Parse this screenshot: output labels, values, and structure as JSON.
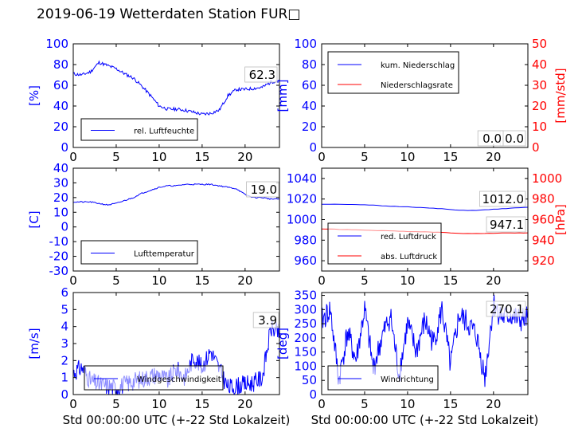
{
  "title": "2019-06-19 Wetterdaten Station FUR□",
  "colors": {
    "left_axis": "#0000ff",
    "right_axis": "#ff0000",
    "series_blue": "#0000ff",
    "series_red": "#ff0000",
    "frame": "#000000"
  },
  "chart_data": [
    {
      "id": "humidity",
      "type": "line",
      "xlim": [
        0,
        24
      ],
      "xticks": [
        0,
        5,
        10,
        15,
        20
      ],
      "xlabel": "",
      "ylim": [
        0,
        100
      ],
      "yticks": [
        0,
        20,
        40,
        60,
        80,
        100
      ],
      "ylabel": "[%]",
      "legend": "bottom-left",
      "current_value": "62.3",
      "series": [
        {
          "name": "rel. Luftfeuchte",
          "color": "#0000ff",
          "axis": "left",
          "x": [
            0,
            1,
            2,
            3,
            4,
            5,
            6,
            7,
            8,
            9,
            10,
            11,
            12,
            13,
            14,
            15,
            16,
            17,
            18,
            19,
            20,
            21,
            22,
            23,
            24
          ],
          "y": [
            71,
            70,
            73,
            82,
            79,
            76,
            71,
            67,
            59,
            50,
            40,
            37,
            37,
            36,
            34,
            32,
            33,
            36,
            50,
            56,
            56,
            57,
            58,
            63,
            65
          ]
        }
      ]
    },
    {
      "id": "precip",
      "type": "line",
      "xlim": [
        0,
        24
      ],
      "xticks": [
        0,
        5,
        10,
        15,
        20
      ],
      "xlabel": "",
      "ylim": [
        0,
        100
      ],
      "yticks": [
        0,
        20,
        40,
        60,
        80,
        100
      ],
      "ylabel": "[mm]",
      "y2lim": [
        0,
        50
      ],
      "y2ticks": [
        0,
        10,
        20,
        30,
        40,
        50
      ],
      "y2label": "[mm/std]",
      "legend": "top-left",
      "current_value": "0.0",
      "current_value_2": "0.0",
      "series": [
        {
          "name": "kum. Niederschlag",
          "color": "#0000ff",
          "axis": "left",
          "x": [
            0,
            24
          ],
          "y": [
            0,
            0
          ]
        },
        {
          "name": "Niederschlagsrate",
          "color": "#ff0000",
          "axis": "right",
          "x": [
            0,
            24
          ],
          "y": [
            0,
            0
          ]
        }
      ]
    },
    {
      "id": "temperature",
      "type": "line",
      "xlim": [
        0,
        24
      ],
      "xticks": [
        0,
        5,
        10,
        15,
        20
      ],
      "xlabel": "",
      "ylim": [
        -30,
        40
      ],
      "yticks": [
        -30,
        -20,
        -10,
        0,
        10,
        20,
        30,
        40
      ],
      "ylabel": "[C]",
      "legend": "bottom-left",
      "current_value": "19.0",
      "series": [
        {
          "name": "Lufttemperatur",
          "color": "#0000ff",
          "axis": "left",
          "x": [
            0,
            1,
            2,
            3,
            4,
            5,
            6,
            7,
            8,
            9,
            10,
            11,
            12,
            13,
            14,
            15,
            16,
            17,
            18,
            19,
            20,
            21,
            22,
            23,
            24
          ],
          "y": [
            17,
            17,
            17,
            16,
            15,
            16,
            18,
            20,
            23,
            25,
            27,
            28,
            28,
            29,
            29,
            29,
            29,
            28,
            27,
            26,
            22,
            20,
            20,
            19,
            19
          ]
        }
      ]
    },
    {
      "id": "pressure",
      "type": "line",
      "xlim": [
        0,
        24
      ],
      "xticks": [
        0,
        5,
        10,
        15,
        20
      ],
      "xlabel": "",
      "ylim": [
        950,
        1050
      ],
      "yticks": [
        960,
        980,
        1000,
        1020,
        1040
      ],
      "ylabel": "",
      "y2lim": [
        910,
        1010
      ],
      "y2ticks": [
        920,
        940,
        960,
        980,
        1000
      ],
      "y2label": "[hPa]",
      "legend": "bottom-left",
      "current_value": "1012.0",
      "current_value_2": "947.1",
      "series": [
        {
          "name": "red. Luftdruck",
          "color": "#0000ff",
          "axis": "left",
          "x": [
            0,
            2,
            4,
            6,
            8,
            10,
            12,
            14,
            16,
            18,
            20,
            22,
            24
          ],
          "y": [
            1015,
            1015,
            1014.5,
            1014,
            1013,
            1012.5,
            1011.5,
            1010.5,
            1009,
            1009,
            1010,
            1011,
            1012
          ]
        },
        {
          "name": "abs. Luftdruck",
          "color": "#ff0000",
          "axis": "right",
          "x": [
            0,
            2,
            4,
            6,
            8,
            10,
            12,
            14,
            16,
            18,
            20,
            22,
            24
          ],
          "y": [
            951,
            950.5,
            950,
            949.5,
            949,
            948.5,
            948,
            947.5,
            946.5,
            946.5,
            946.8,
            947,
            947.1
          ]
        }
      ]
    },
    {
      "id": "wind_speed",
      "type": "line",
      "xlim": [
        0,
        24
      ],
      "xticks": [
        0,
        5,
        10,
        15,
        20
      ],
      "xlabel": "Std 00:00:00 UTC (+-22 Std Lokalzeit)",
      "ylim": [
        0,
        6
      ],
      "yticks": [
        0,
        1,
        2,
        3,
        4,
        5,
        6
      ],
      "ylabel": "[m/s]",
      "legend": "bottom-left",
      "current_value": "3.9",
      "series": [
        {
          "name": "Windgeschwindigkeit",
          "color": "#0000ff",
          "axis": "left",
          "x": [
            0,
            1,
            2,
            3,
            4,
            5,
            6,
            7,
            8,
            9,
            10,
            11,
            12,
            13,
            14,
            15,
            16,
            17,
            18,
            19,
            20,
            21,
            22,
            23,
            24
          ],
          "y": [
            1.3,
            1.6,
            0.8,
            0.6,
            0.5,
            0.4,
            0.6,
            0.8,
            0.9,
            1.1,
            1.2,
            0.8,
            1.5,
            1.0,
            2.2,
            1.6,
            2.6,
            1.5,
            0.4,
            0.5,
            0.6,
            0.7,
            1.0,
            3.9,
            3.6
          ]
        }
      ]
    },
    {
      "id": "wind_direction",
      "type": "line",
      "xlim": [
        0,
        24
      ],
      "xticks": [
        0,
        5,
        10,
        15,
        20
      ],
      "xlabel": "Std 00:00:00 UTC (+-22 Std Lokalzeit)",
      "ylim": [
        0,
        360
      ],
      "yticks": [
        0,
        50,
        100,
        150,
        200,
        250,
        300,
        350
      ],
      "ylabel": "[deg]",
      "legend": "bottom-left",
      "current_value": "270.1",
      "series": [
        {
          "name": "Windrichtung",
          "color": "#0000ff",
          "axis": "left",
          "x": [
            0,
            1,
            2,
            3,
            4,
            5,
            6,
            7,
            8,
            9,
            10,
            11,
            12,
            13,
            14,
            15,
            16,
            17,
            18,
            19,
            20,
            21,
            22,
            23,
            24
          ],
          "y": [
            260,
            300,
            50,
            220,
            120,
            300,
            90,
            200,
            280,
            70,
            250,
            150,
            260,
            180,
            300,
            100,
            280,
            250,
            210,
            60,
            320,
            270,
            280,
            260,
            270
          ]
        }
      ]
    }
  ]
}
